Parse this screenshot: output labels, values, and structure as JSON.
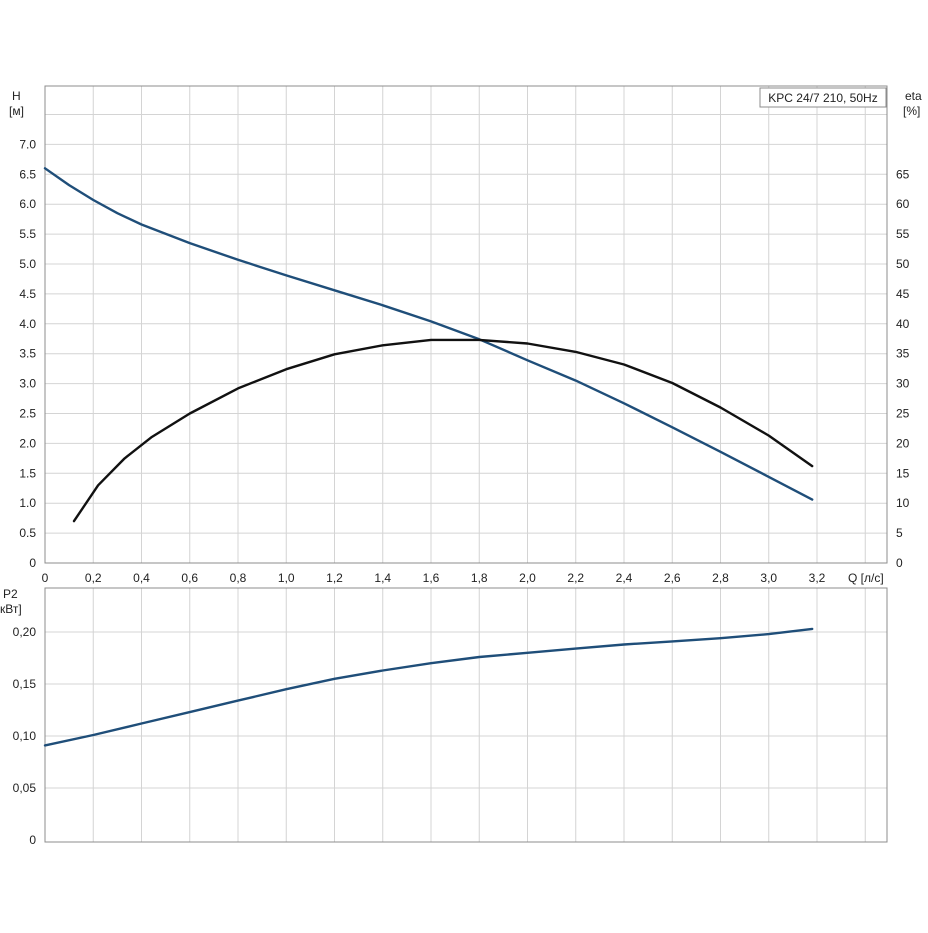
{
  "colors": {
    "head": "#1f4e79",
    "eta": "#111111",
    "power": "#1f4e79",
    "grid": "#d4d4d4",
    "frame": "#8c8c8c"
  },
  "chart_data": [
    {
      "type": "line",
      "title": "KPC 24/7 210, 50Hz",
      "xlabel": "Q [л/с]",
      "ylabel_left": [
        "H",
        "[м]"
      ],
      "ylabel_right": [
        "eta",
        "[%]"
      ],
      "xlim": [
        0,
        3.5
      ],
      "ylim_left": [
        0,
        7.5
      ],
      "ylim_right": [
        0,
        75
      ],
      "x_ticks": [
        "0",
        "0,2",
        "0,4",
        "0,6",
        "0,8",
        "1,0",
        "1,2",
        "1,4",
        "1,6",
        "1,8",
        "2,0",
        "2,2",
        "2,4",
        "2,6",
        "2,8",
        "3,0",
        "3,2"
      ],
      "y_ticks_left": [
        "0",
        "0.5",
        "1.0",
        "1.5",
        "2.0",
        "2.5",
        "3.0",
        "3.5",
        "4.0",
        "4.5",
        "5.0",
        "5.5",
        "6.0",
        "6.5",
        "7.0"
      ],
      "y_ticks_right": [
        "0",
        "5",
        "10",
        "15",
        "20",
        "25",
        "30",
        "35",
        "40",
        "45",
        "50",
        "55",
        "60",
        "65"
      ],
      "grid": true,
      "legend": "none",
      "series": [
        {
          "key": "head",
          "axis": "left",
          "x": [
            0,
            0.1,
            0.2,
            0.3,
            0.4,
            0.6,
            0.8,
            1.0,
            1.2,
            1.4,
            1.6,
            1.8,
            2.0,
            2.2,
            2.4,
            2.6,
            2.8,
            3.0,
            3.18
          ],
          "y": [
            6.6,
            6.32,
            6.07,
            5.85,
            5.66,
            5.35,
            5.07,
            4.81,
            4.56,
            4.31,
            4.04,
            3.74,
            3.39,
            3.05,
            2.67,
            2.27,
            1.86,
            1.44,
            1.06
          ]
        },
        {
          "key": "eta",
          "axis": "right",
          "x": [
            0.12,
            0.22,
            0.33,
            0.44,
            0.6,
            0.8,
            1.0,
            1.2,
            1.4,
            1.6,
            1.8,
            2.0,
            2.2,
            2.4,
            2.6,
            2.8,
            3.0,
            3.18
          ],
          "y": [
            7,
            13,
            17.5,
            21,
            25,
            29.2,
            32.4,
            34.9,
            36.4,
            37.3,
            37.3,
            36.7,
            35.3,
            33.2,
            30.1,
            26,
            21.3,
            16.2
          ]
        }
      ]
    },
    {
      "type": "line",
      "ylabel": [
        "P2",
        "кВт]"
      ],
      "xlim": [
        0,
        3.5
      ],
      "ylim": [
        0,
        0.22
      ],
      "y_ticks": [
        "0",
        "0,05",
        "0,10",
        "0,15",
        "0,20"
      ],
      "grid": true,
      "legend": "none",
      "series": [
        {
          "key": "power",
          "x": [
            0,
            0.2,
            0.4,
            0.6,
            0.8,
            1.0,
            1.2,
            1.4,
            1.6,
            1.8,
            2.0,
            2.2,
            2.4,
            2.6,
            2.8,
            3.0,
            3.18
          ],
          "y": [
            0.091,
            0.101,
            0.112,
            0.123,
            0.134,
            0.145,
            0.155,
            0.163,
            0.17,
            0.176,
            0.18,
            0.184,
            0.188,
            0.191,
            0.194,
            0.198,
            0.203
          ]
        }
      ]
    }
  ]
}
